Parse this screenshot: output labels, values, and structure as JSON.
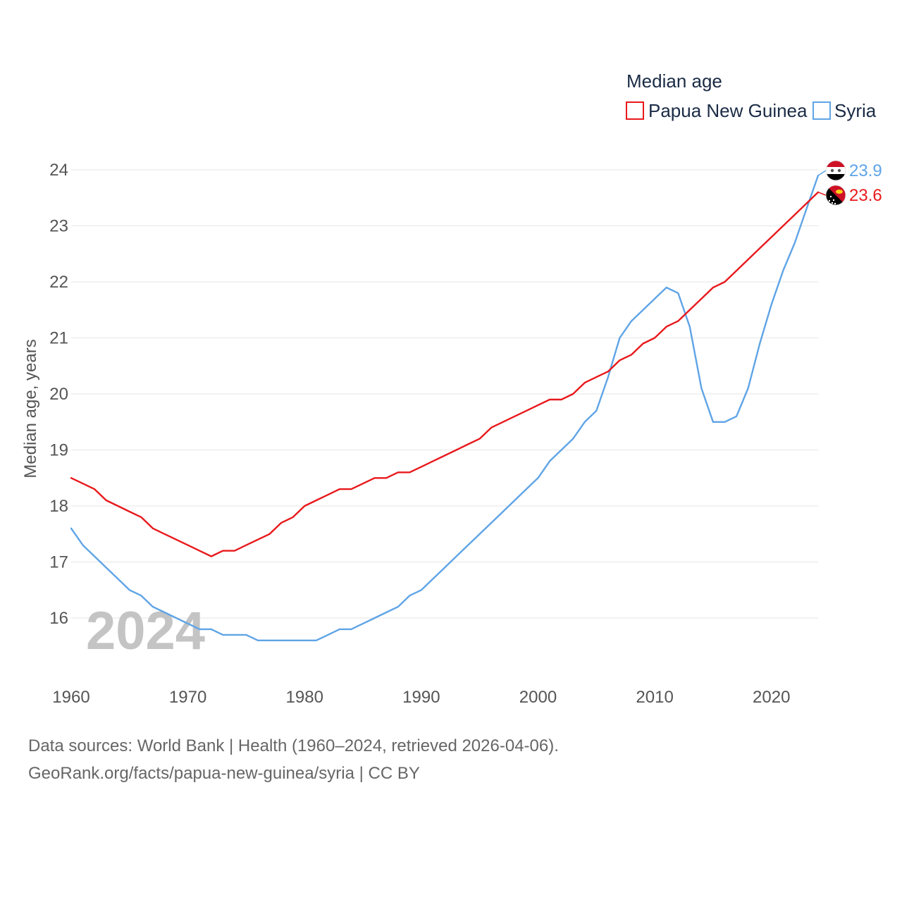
{
  "chart_data": {
    "type": "line",
    "title": "",
    "legend_title": "Median age",
    "legend_position": "top-right",
    "ylabel": "Median age, years",
    "xlabel": "",
    "year_label": "2024",
    "xlim": [
      1960,
      2024
    ],
    "ylim": [
      15.0,
      24.3
    ],
    "grid": true,
    "xticks": [
      1960,
      1970,
      1980,
      1990,
      2000,
      2010,
      2020
    ],
    "yticks": [
      16,
      17,
      18,
      19,
      20,
      21,
      22,
      23,
      24
    ],
    "x": [
      1960,
      1961,
      1962,
      1963,
      1964,
      1965,
      1966,
      1967,
      1968,
      1969,
      1970,
      1971,
      1972,
      1973,
      1974,
      1975,
      1976,
      1977,
      1978,
      1979,
      1980,
      1981,
      1982,
      1983,
      1984,
      1985,
      1986,
      1987,
      1988,
      1989,
      1990,
      1991,
      1992,
      1993,
      1994,
      1995,
      1996,
      1997,
      1998,
      1999,
      2000,
      2001,
      2002,
      2003,
      2004,
      2005,
      2006,
      2007,
      2008,
      2009,
      2010,
      2011,
      2012,
      2013,
      2014,
      2015,
      2016,
      2017,
      2018,
      2019,
      2020,
      2021,
      2022,
      2023,
      2024
    ],
    "series": [
      {
        "name": "Papua New Guinea",
        "color": "#e8191c",
        "end_label": "23.6",
        "flag": "papua-new-guinea-flag-icon",
        "values": [
          18.5,
          18.4,
          18.3,
          18.1,
          18.0,
          17.9,
          17.8,
          17.6,
          17.5,
          17.4,
          17.3,
          17.2,
          17.1,
          17.2,
          17.2,
          17.3,
          17.4,
          17.5,
          17.7,
          17.8,
          18.0,
          18.1,
          18.2,
          18.3,
          18.3,
          18.4,
          18.5,
          18.5,
          18.6,
          18.6,
          18.7,
          18.8,
          18.9,
          19.0,
          19.1,
          19.2,
          19.4,
          19.5,
          19.6,
          19.7,
          19.8,
          19.9,
          19.9,
          20.0,
          20.2,
          20.3,
          20.4,
          20.6,
          20.7,
          20.9,
          21.0,
          21.2,
          21.3,
          21.5,
          21.7,
          21.9,
          22.0,
          22.2,
          22.4,
          22.6,
          22.8,
          23.0,
          23.2,
          23.4,
          23.6
        ]
      },
      {
        "name": "Syria",
        "color": "#5fa4e6",
        "end_label": "23.9",
        "flag": "syria-flag-icon",
        "values": [
          17.6,
          17.3,
          17.1,
          16.9,
          16.7,
          16.5,
          16.4,
          16.2,
          16.1,
          16.0,
          15.9,
          15.8,
          15.8,
          15.7,
          15.7,
          15.7,
          15.6,
          15.6,
          15.6,
          15.6,
          15.6,
          15.6,
          15.7,
          15.8,
          15.8,
          15.9,
          16.0,
          16.1,
          16.2,
          16.4,
          16.5,
          16.7,
          16.9,
          17.1,
          17.3,
          17.5,
          17.7,
          17.9,
          18.1,
          18.3,
          18.5,
          18.8,
          19.0,
          19.2,
          19.5,
          19.7,
          20.3,
          21.0,
          21.3,
          21.5,
          21.7,
          21.9,
          21.8,
          21.2,
          20.1,
          19.5,
          19.5,
          19.6,
          20.1,
          20.9,
          21.6,
          22.2,
          22.7,
          23.3,
          23.9
        ]
      }
    ]
  },
  "footer": {
    "source_line": "Data sources: World Bank | Health (1960–2024, retrieved 2026-04-06).",
    "url_line": "GeoRank.org/facts/papua-new-guinea/syria | CC BY"
  }
}
